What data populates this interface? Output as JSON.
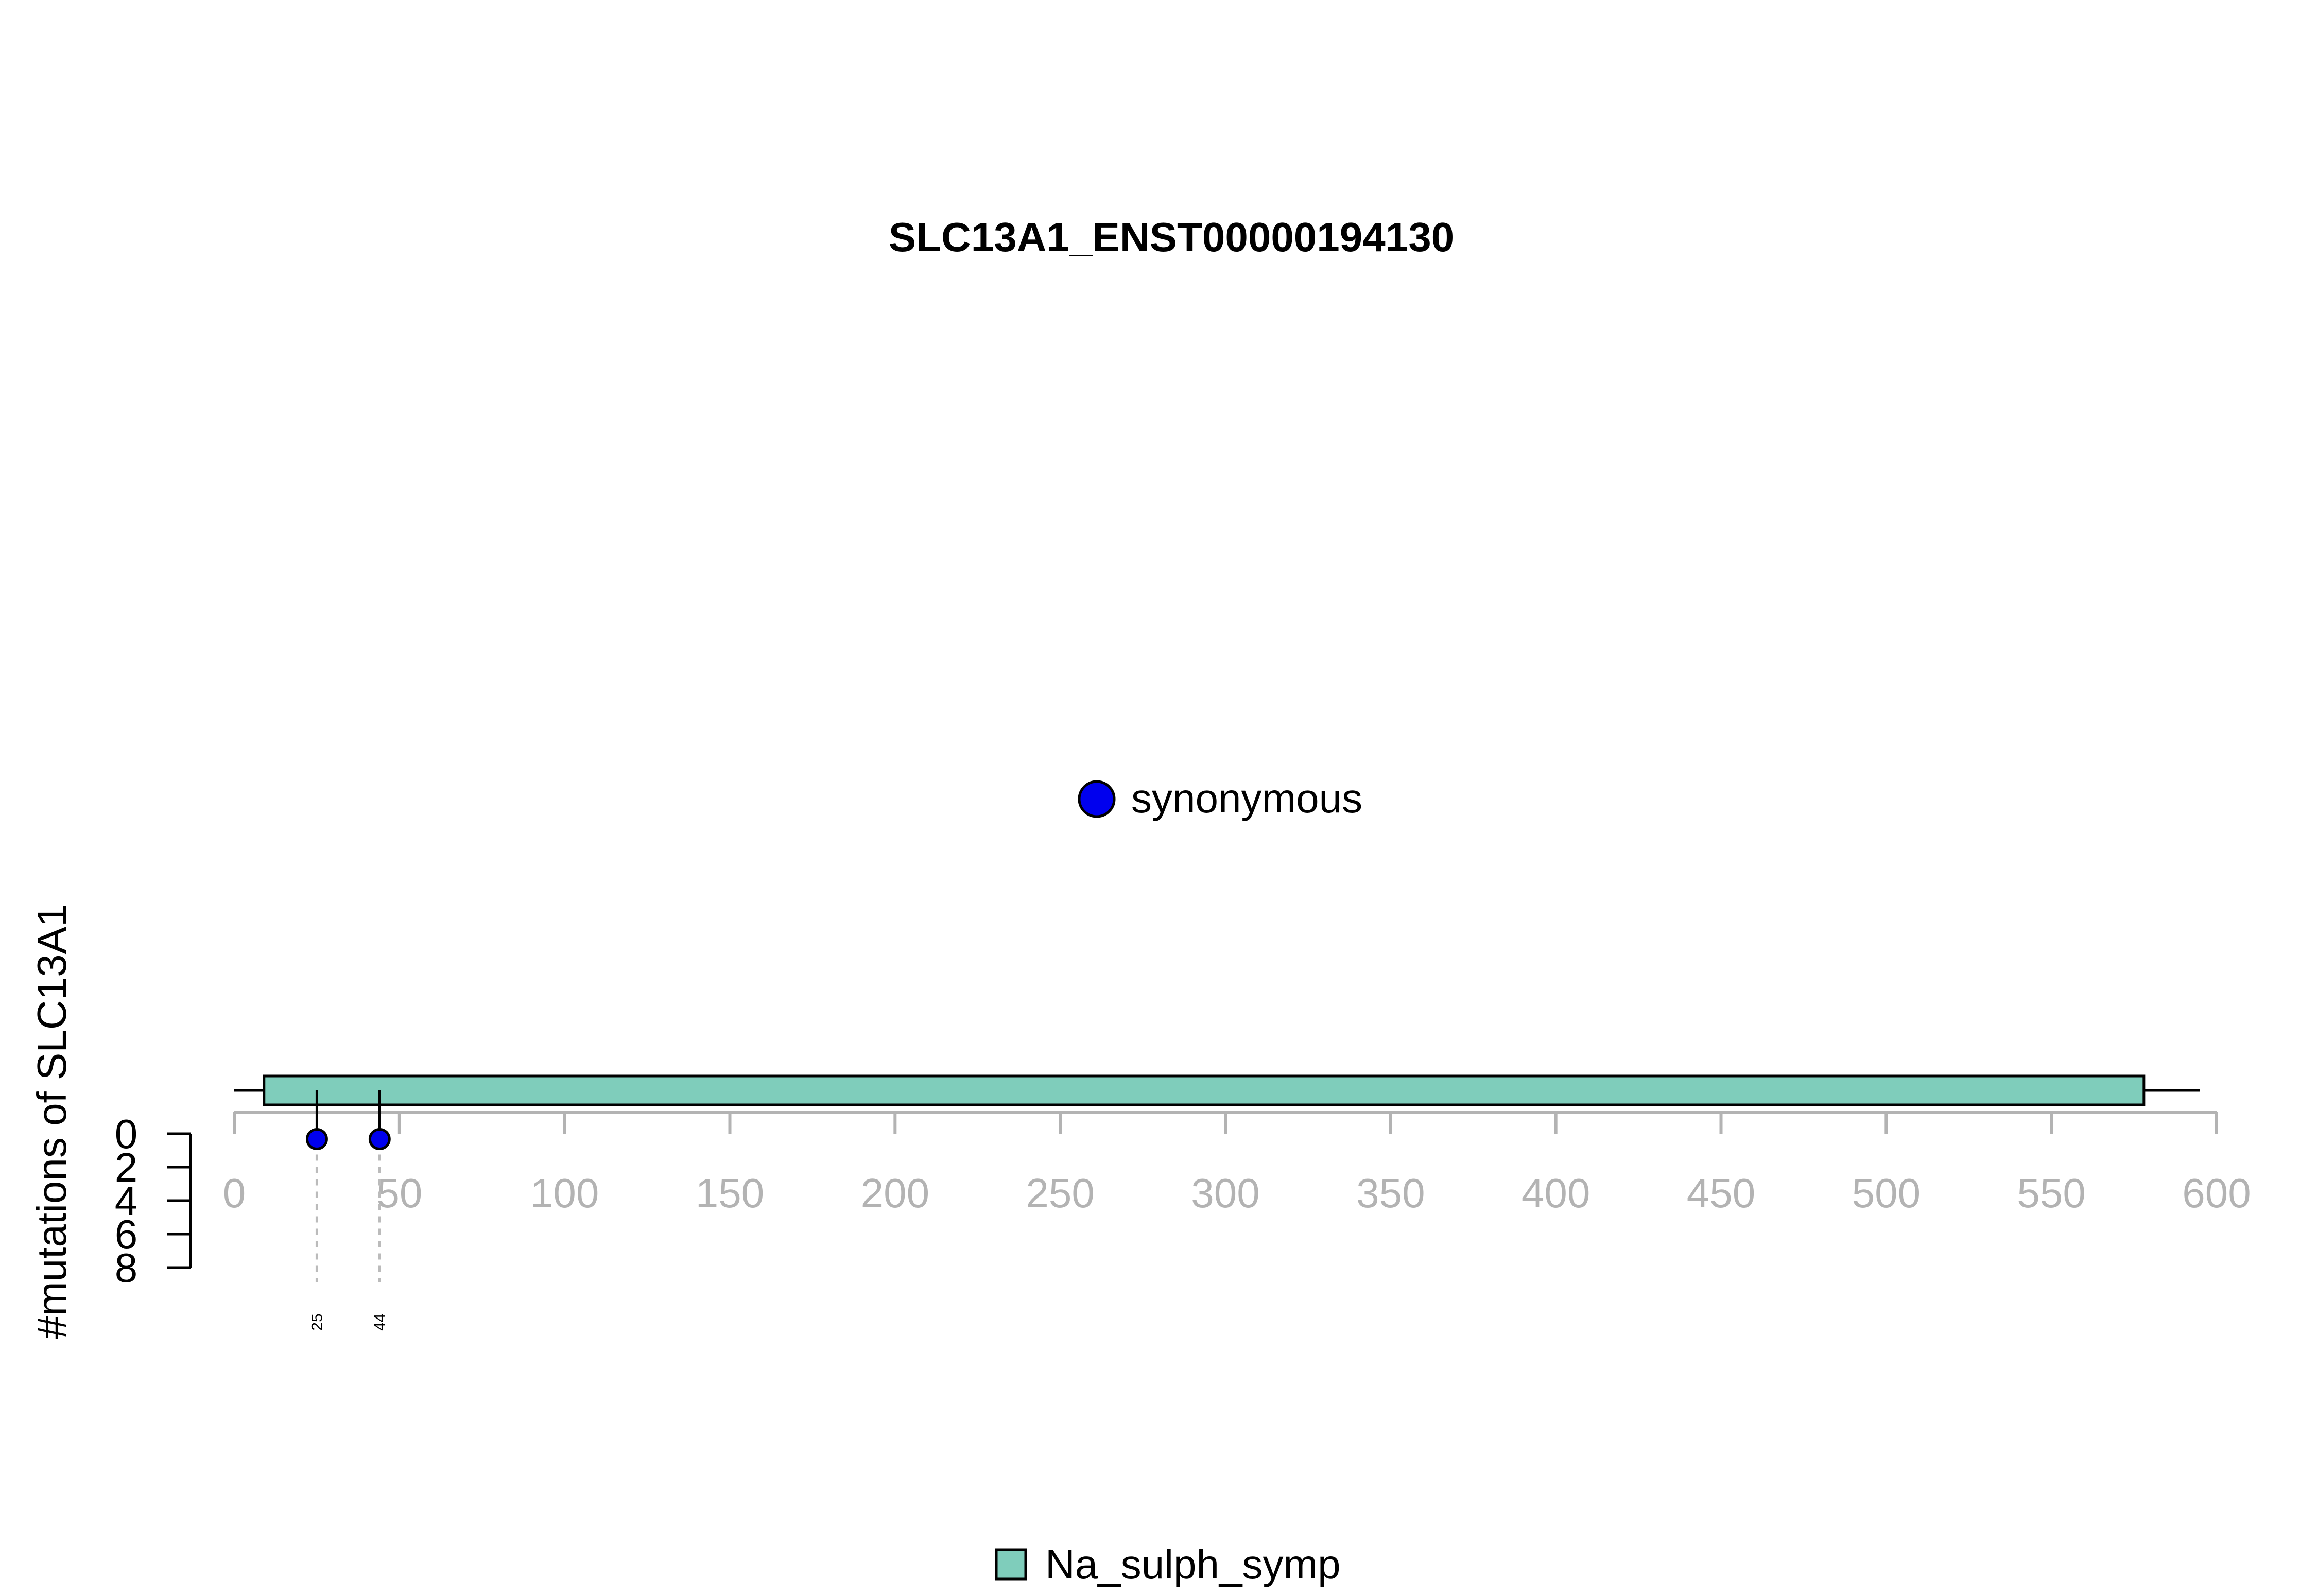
{
  "chart_data": {
    "type": "lollipop",
    "title": "SLC13A1_ENST00000194130",
    "ylabel": "#mutations of SLC13A1",
    "x_axis": {
      "range": [
        0,
        600
      ],
      "ticks": [
        0,
        50,
        100,
        150,
        200,
        250,
        300,
        350,
        400,
        450,
        500,
        550,
        600
      ],
      "tick_color": "#b3b3b3"
    },
    "y_axis": {
      "range": [
        0,
        8
      ],
      "ticks": [
        0,
        2,
        4,
        6,
        8
      ],
      "inverted": true
    },
    "protein": {
      "start": 0,
      "end": 595
    },
    "domains": [
      {
        "name": "Na_sulph_symp",
        "start": 9,
        "end": 578,
        "color": "#7fcdbb"
      }
    ],
    "mutations": [
      {
        "position": 25,
        "count": 1,
        "type": "synonymous",
        "label": "25"
      },
      {
        "position": 44,
        "count": 1,
        "type": "synonymous",
        "label": "44"
      }
    ],
    "mutation_legend": [
      {
        "label": "synonymous",
        "color": "#0000ee"
      }
    ],
    "domain_legend": [
      {
        "label": "Na_sulph_symp",
        "color": "#7fcdbb"
      }
    ]
  }
}
